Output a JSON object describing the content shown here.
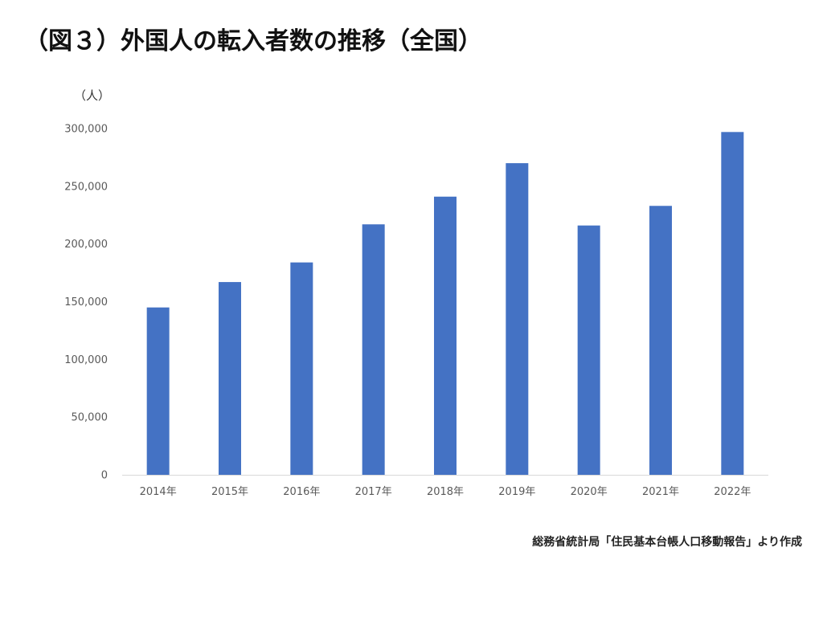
{
  "title": "（図３）外国人の転入者数の推移（全国）",
  "source": "総務省統計局「住民基本台帳人口移動報告」より作成",
  "chart_data": {
    "type": "bar",
    "ylabel": "（人）",
    "categories": [
      "2014年",
      "2015年",
      "2016年",
      "2017年",
      "2018年",
      "2019年",
      "2020年",
      "2021年",
      "2022年"
    ],
    "values": [
      145000,
      167000,
      184000,
      217000,
      241000,
      270000,
      216000,
      233000,
      297000
    ],
    "ylim": [
      0,
      300000
    ],
    "yticks": [
      0,
      50000,
      100000,
      150000,
      200000,
      250000,
      300000
    ],
    "ytick_labels": [
      "0",
      "50,000",
      "100,000",
      "150,000",
      "200,000",
      "250,000",
      "300,000"
    ],
    "grid": false,
    "legend": "none",
    "bar_color": "#4472c4",
    "axis_color": "#d9d9d9"
  }
}
